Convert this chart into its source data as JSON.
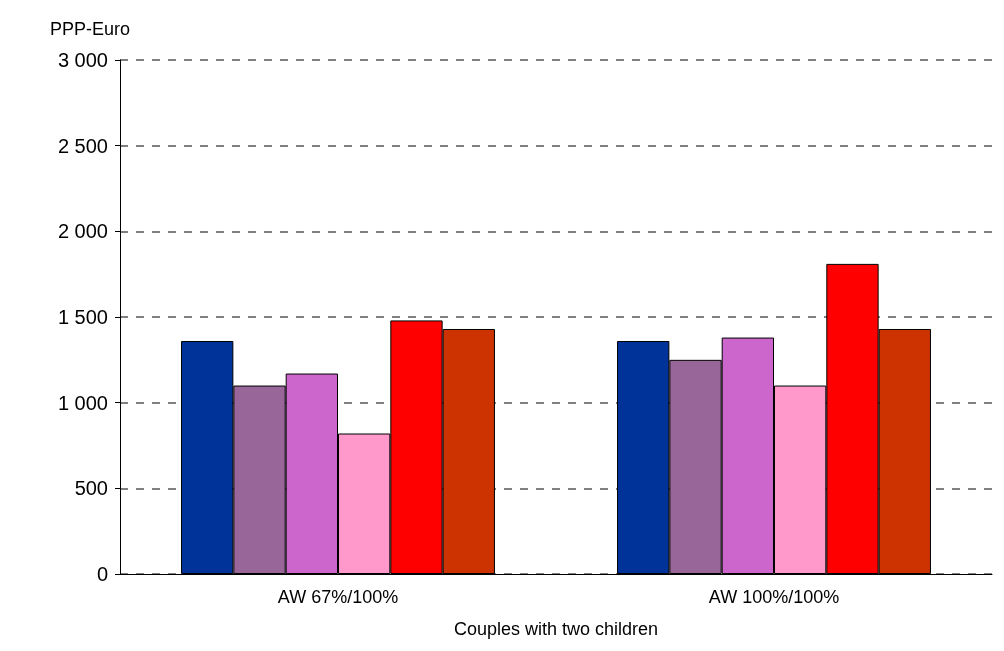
{
  "chart_data": {
    "type": "bar",
    "ylabel": "PPP-Euro",
    "xlabel": "Couples with two children",
    "categories": [
      "AW 67%/100%",
      "AW 100%/100%"
    ],
    "series": [
      {
        "color": "#003399",
        "values": [
          1360,
          1360
        ]
      },
      {
        "color": "#996699",
        "values": [
          1100,
          1250
        ]
      },
      {
        "color": "#cc66cc",
        "values": [
          1170,
          1380
        ]
      },
      {
        "color": "#ff99cc",
        "values": [
          820,
          1100
        ]
      },
      {
        "color": "#ff0000",
        "values": [
          1480,
          1810
        ]
      },
      {
        "color": "#cc3300",
        "values": [
          1430,
          1430
        ]
      }
    ],
    "ylim": [
      0,
      3000
    ],
    "yticks": [
      0,
      {
        "value": 500,
        "label": "500"
      },
      {
        "value": 1000,
        "label": "1 000"
      },
      {
        "value": 1500,
        "label": "1 500"
      },
      {
        "value": 2000,
        "label": "2 000"
      },
      {
        "value": 2500,
        "label": "2 500"
      },
      {
        "value": 3000,
        "label": "3 000"
      }
    ],
    "grid": "y"
  }
}
